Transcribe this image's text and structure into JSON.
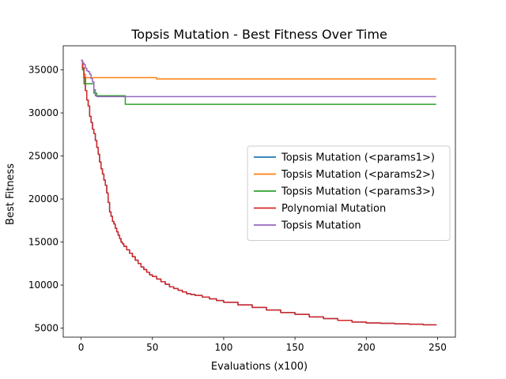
{
  "chart_data": {
    "type": "line",
    "title": "Topsis Mutation - Best Fitness Over Time",
    "xlabel": "Evaluations (x100)",
    "ylabel": "Best Fitness",
    "xlim": [
      -12.5,
      262.5
    ],
    "ylim": [
      3950,
      37800
    ],
    "xticks": [
      0,
      50,
      100,
      150,
      200,
      250
    ],
    "yticks": [
      5000,
      10000,
      15000,
      20000,
      25000,
      30000,
      35000
    ],
    "grid": false,
    "legend_position": "center-right",
    "series": [
      {
        "name": "Topsis Mutation (<params1>)",
        "color": "#1f77b4",
        "x": [
          0,
          1,
          2,
          3,
          4,
          5,
          6,
          7,
          8,
          9,
          10,
          11,
          12,
          13,
          14,
          15,
          16,
          17,
          18,
          19,
          20,
          21,
          22,
          23,
          24,
          25,
          26,
          27,
          28,
          29,
          30,
          32,
          34,
          36,
          38,
          40,
          42,
          44,
          46,
          48,
          50,
          53,
          56,
          59,
          62,
          65,
          68,
          71,
          74,
          77,
          80,
          85,
          90,
          95,
          100,
          110,
          120,
          130,
          140,
          150,
          160,
          170,
          180,
          190,
          200,
          210,
          220,
          230,
          240,
          249
        ],
        "values": [
          36100,
          35200,
          34100,
          32600,
          31500,
          30800,
          29600,
          28900,
          28100,
          27600,
          26800,
          26000,
          25200,
          24300,
          23500,
          22900,
          22200,
          21600,
          20700,
          19600,
          18500,
          18000,
          17400,
          17100,
          16600,
          16200,
          15800,
          15400,
          15000,
          14800,
          14500,
          14100,
          13700,
          13300,
          12900,
          12500,
          12100,
          11800,
          11500,
          11200,
          11000,
          10700,
          10400,
          10100,
          9800,
          9600,
          9400,
          9200,
          9000,
          8900,
          8800,
          8600,
          8400,
          8200,
          8000,
          7700,
          7400,
          7100,
          6800,
          6600,
          6300,
          6100,
          5900,
          5700,
          5600,
          5550,
          5500,
          5450,
          5380,
          5350
        ]
      },
      {
        "name": "Topsis Mutation (<params2>)",
        "color": "#ff7f0e",
        "x": [
          0,
          1,
          2,
          3,
          4,
          52,
          53,
          249
        ],
        "values": [
          36100,
          35300,
          34500,
          34100,
          34100,
          34100,
          33950,
          33950
        ]
      },
      {
        "name": "Topsis Mutation (<params3>)",
        "color": "#2ca02c",
        "x": [
          0,
          1,
          2,
          3,
          4,
          5,
          6,
          7,
          8,
          9,
          10,
          11,
          12,
          30,
          31,
          249
        ],
        "values": [
          36100,
          35000,
          33400,
          33400,
          33400,
          33400,
          33400,
          33400,
          33400,
          32300,
          32300,
          32000,
          32000,
          32000,
          31000,
          31000
        ]
      },
      {
        "name": "Polynomial Mutation",
        "color": "#d62728",
        "x": [
          0,
          1,
          2,
          3,
          4,
          5,
          6,
          7,
          8,
          9,
          10,
          11,
          12,
          13,
          14,
          15,
          16,
          17,
          18,
          19,
          20,
          21,
          22,
          23,
          24,
          25,
          26,
          27,
          28,
          29,
          30,
          32,
          34,
          36,
          38,
          40,
          42,
          44,
          46,
          48,
          50,
          53,
          56,
          59,
          62,
          65,
          68,
          71,
          74,
          77,
          80,
          85,
          90,
          95,
          100,
          110,
          120,
          130,
          140,
          150,
          160,
          170,
          180,
          190,
          200,
          210,
          220,
          230,
          240,
          249
        ],
        "values": [
          36100,
          35200,
          34100,
          32600,
          31500,
          30800,
          29600,
          28900,
          28100,
          27600,
          26800,
          26000,
          25200,
          24300,
          23500,
          22900,
          22200,
          21600,
          20700,
          19600,
          18500,
          18000,
          17400,
          17100,
          16600,
          16200,
          15800,
          15400,
          15000,
          14800,
          14500,
          14100,
          13700,
          13300,
          12900,
          12500,
          12100,
          11800,
          11500,
          11200,
          11000,
          10700,
          10400,
          10100,
          9800,
          9600,
          9400,
          9200,
          9000,
          8900,
          8800,
          8600,
          8400,
          8200,
          8000,
          7700,
          7400,
          7100,
          6800,
          6600,
          6300,
          6100,
          5900,
          5700,
          5600,
          5550,
          5500,
          5450,
          5380,
          5350
        ]
      },
      {
        "name": "Topsis Mutation",
        "color": "#9467bd",
        "x": [
          0,
          1,
          2,
          3,
          4,
          5,
          6,
          7,
          8,
          9,
          10,
          11,
          249
        ],
        "values": [
          36100,
          35800,
          35600,
          35200,
          34900,
          34800,
          34500,
          34000,
          33600,
          32700,
          32000,
          31900,
          31900
        ]
      }
    ]
  }
}
